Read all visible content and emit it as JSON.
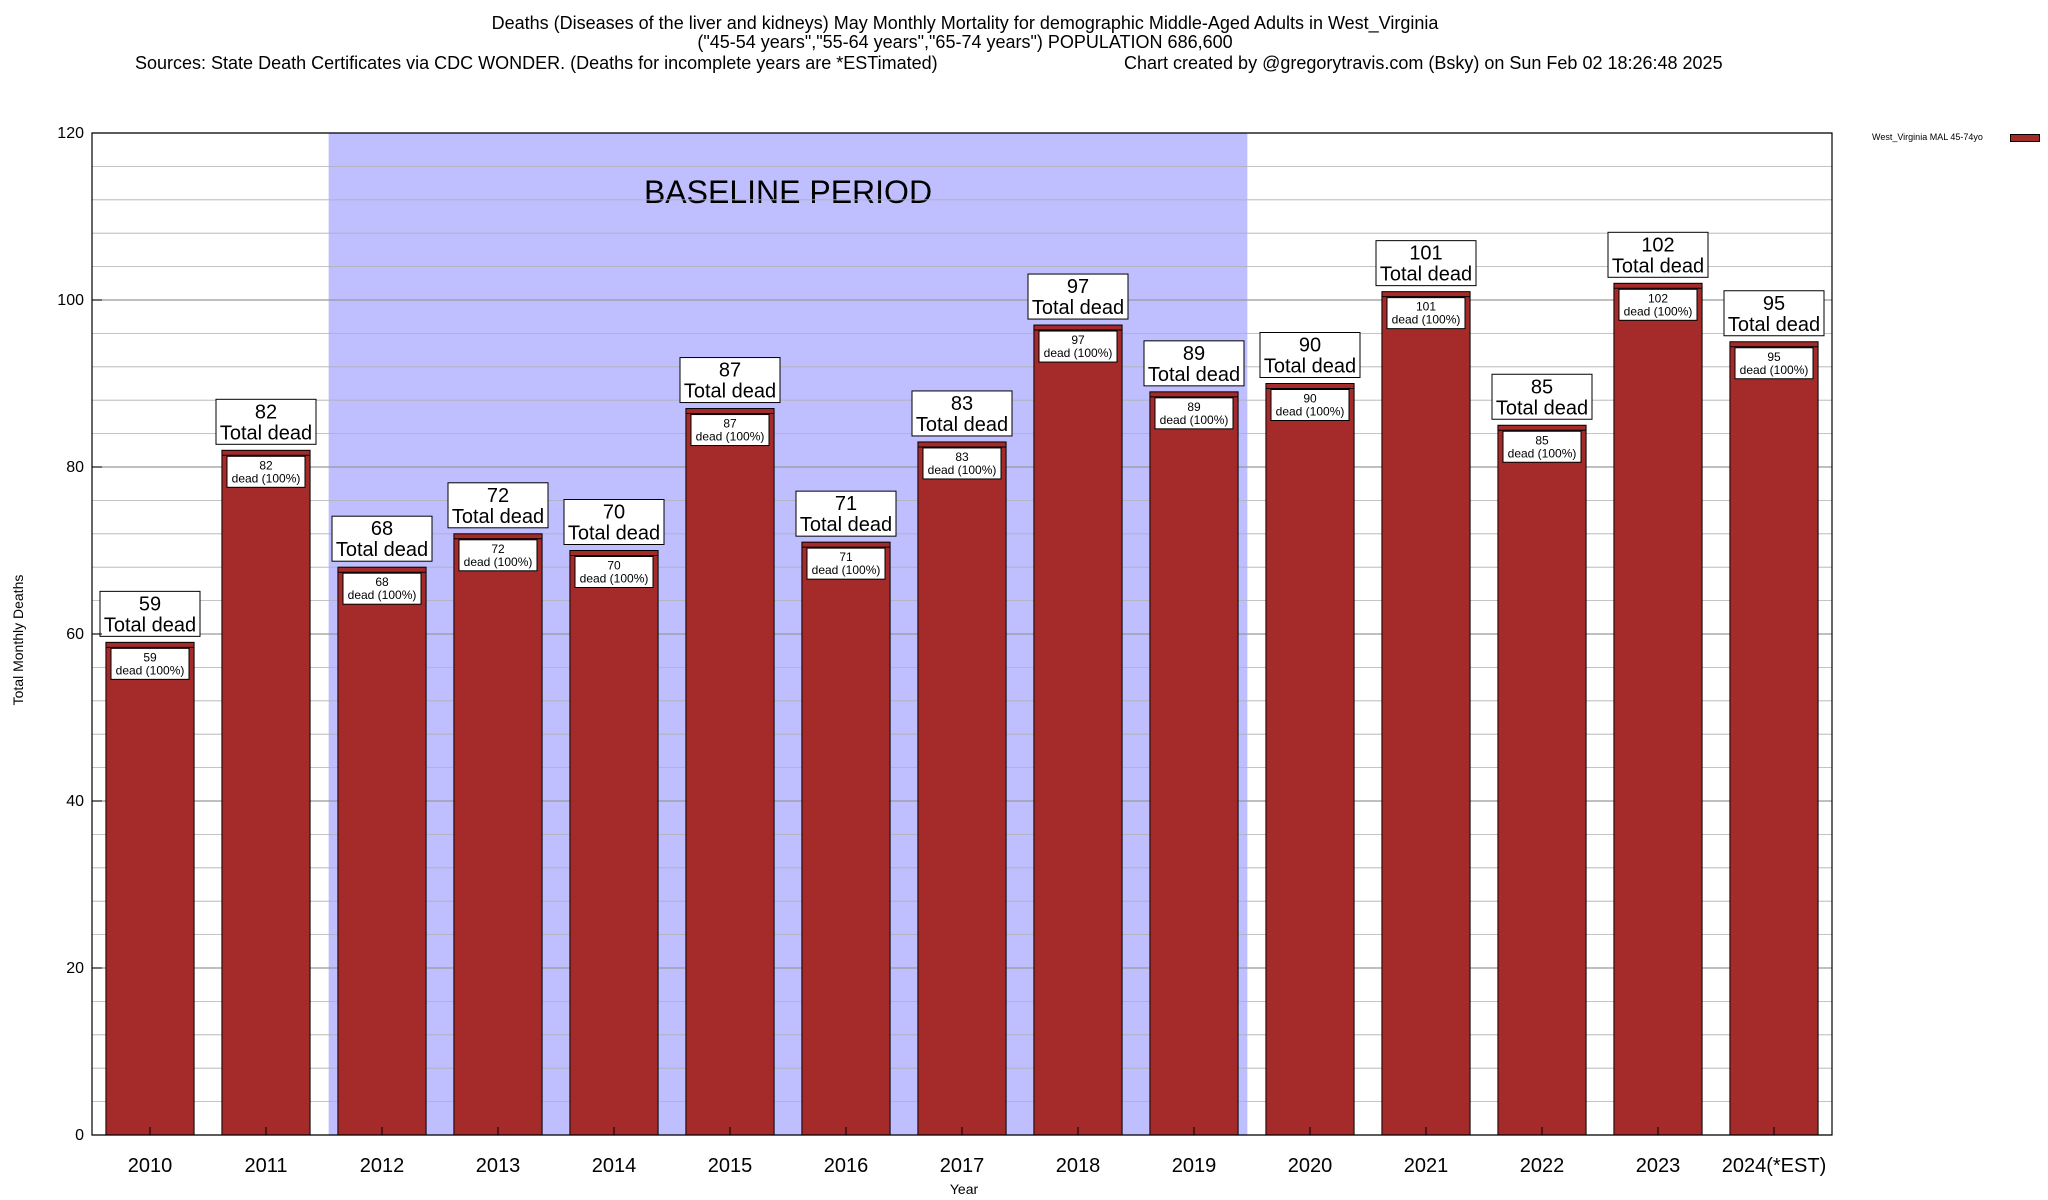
{
  "header": {
    "title_line1": "Deaths (Diseases of the liver and kidneys) May Monthly Mortality for demographic Middle-Aged Adults in West_Virginia",
    "title_line2": "(\"45-54 years\",\"55-64 years\",\"65-74 years\") POPULATION 686,600",
    "sources": "Sources: State Death Certificates via CDC WONDER. (Deaths for incomplete years are *ESTimated)",
    "credit": "Chart created by @gregorytravis.com (Bsky) on Sun Feb 02 18:26:48 2025"
  },
  "legend": {
    "label": "West_Virginia MAL 45-74yo"
  },
  "colors": {
    "bar": "#a52a2a",
    "baseline_shade": "#bfbfff",
    "grid": "#b0b0b0"
  },
  "chart_data": {
    "type": "bar",
    "categories": [
      "2010",
      "2011",
      "2012",
      "2013",
      "2014",
      "2015",
      "2016",
      "2017",
      "2018",
      "2019",
      "2020",
      "2021",
      "2022",
      "2023",
      "2024(*EST)"
    ],
    "series": [
      {
        "name": "West_Virginia MAL 45-74yo",
        "values": [
          59,
          82,
          68,
          72,
          70,
          87,
          71,
          83,
          97,
          89,
          90,
          101,
          85,
          102,
          95
        ]
      }
    ],
    "ylabel": "Total Monthly Deaths",
    "xlabel": "Year",
    "ylim": [
      0,
      120
    ],
    "yticks": [
      0,
      20,
      40,
      60,
      80,
      100,
      120
    ],
    "top_label_suffix": "Total dead",
    "inner_label_suffix": "dead (100%)",
    "baseline": {
      "label": "BASELINE PERIOD",
      "from": "2012",
      "to": "2019"
    },
    "grid": true,
    "legend_position": "top-right"
  }
}
